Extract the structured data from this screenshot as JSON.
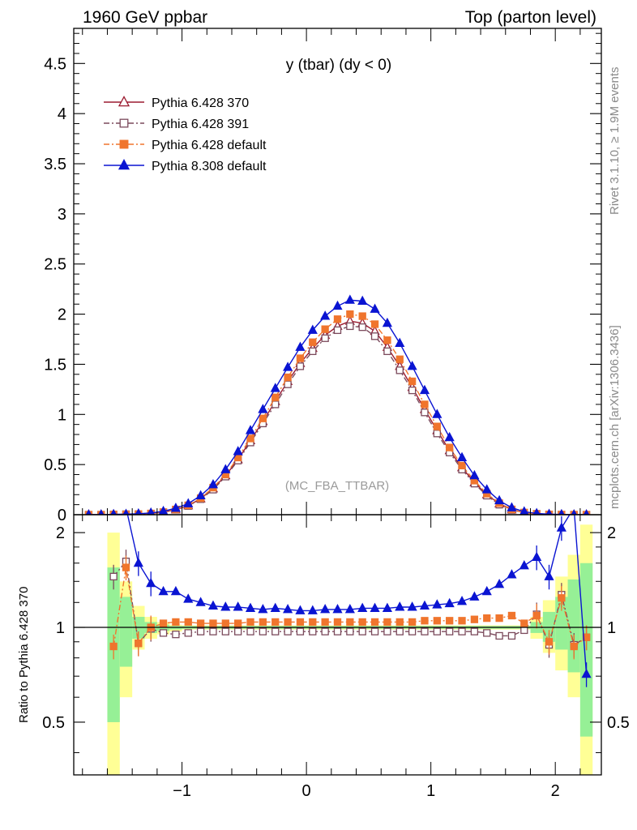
{
  "header": {
    "left": "1960 GeV ppbar",
    "right": "Top (parton level)"
  },
  "side_labels": {
    "rivet": "Rivet 3.1.10, ≥ 1.9M events",
    "mcplots": "mcplots.cern.ch [arXiv:1306.3436]"
  },
  "chart_data": [
    {
      "type": "line",
      "title": "y (tbar) (dy < 0)",
      "watermark": "(MC_FBA_TTBAR)",
      "ylim": [
        0,
        4.85
      ],
      "xlim": [
        -1.87,
        2.37
      ],
      "y_ticks": [
        "0",
        "0.5",
        "1",
        "1.5",
        "2",
        "2.5",
        "3",
        "3.5",
        "4",
        "4.5"
      ],
      "y_tick_values": [
        0,
        0.5,
        1,
        1.5,
        2,
        2.5,
        3,
        3.5,
        4,
        4.5
      ],
      "legend_position": "top-left",
      "x": [
        -1.75,
        -1.65,
        -1.55,
        -1.45,
        -1.35,
        -1.25,
        -1.15,
        -1.05,
        -0.95,
        -0.85,
        -0.75,
        -0.65,
        -0.55,
        -0.45,
        -0.35,
        -0.25,
        -0.15,
        -0.05,
        0.05,
        0.15,
        0.25,
        0.35,
        0.45,
        0.55,
        0.65,
        0.75,
        0.85,
        0.95,
        1.05,
        1.15,
        1.25,
        1.35,
        1.45,
        1.55,
        1.65,
        1.75,
        1.85,
        1.95,
        2.05,
        2.15,
        2.25
      ],
      "series": [
        {
          "name": "Pythia 6.428 370",
          "color": "#9b1b30",
          "marker": "open-triangle",
          "dash": "solid",
          "values": [
            0.0,
            0.0,
            0.002,
            0.003,
            0.006,
            0.012,
            0.025,
            0.05,
            0.09,
            0.16,
            0.26,
            0.39,
            0.55,
            0.74,
            0.93,
            1.13,
            1.33,
            1.51,
            1.66,
            1.79,
            1.88,
            1.93,
            1.91,
            1.83,
            1.67,
            1.48,
            1.27,
            1.05,
            0.84,
            0.64,
            0.47,
            0.32,
            0.2,
            0.11,
            0.05,
            0.02,
            0.008,
            0.003,
            0.001,
            0.0,
            0.0
          ]
        },
        {
          "name": "Pythia 6.428 391",
          "color": "#7b4a5c",
          "marker": "open-square",
          "dash": "dashdot",
          "values": [
            0.0,
            0.0,
            0.003,
            0.005,
            0.005,
            0.011,
            0.024,
            0.049,
            0.087,
            0.155,
            0.25,
            0.38,
            0.54,
            0.72,
            0.91,
            1.1,
            1.3,
            1.48,
            1.63,
            1.76,
            1.84,
            1.88,
            1.87,
            1.78,
            1.63,
            1.44,
            1.24,
            1.02,
            0.81,
            0.62,
            0.45,
            0.31,
            0.19,
            0.1,
            0.047,
            0.02,
            0.009,
            0.003,
            0.001,
            0.0,
            0.0
          ]
        },
        {
          "name": "Pythia 6.428 default",
          "color": "#f0752d",
          "marker": "filled-square",
          "dash": "dashdot",
          "values": [
            0.0,
            0.0,
            0.002,
            0.003,
            0.006,
            0.012,
            0.026,
            0.052,
            0.094,
            0.165,
            0.27,
            0.4,
            0.57,
            0.76,
            0.96,
            1.17,
            1.37,
            1.56,
            1.72,
            1.85,
            1.95,
            2.0,
            1.98,
            1.9,
            1.74,
            1.55,
            1.33,
            1.1,
            0.88,
            0.67,
            0.49,
            0.34,
            0.21,
            0.115,
            0.053,
            0.021,
            0.008,
            0.003,
            0.001,
            0.0,
            0.0
          ]
        },
        {
          "name": "Pythia 8.308 default",
          "color": "#0a14d2",
          "marker": "filled-triangle",
          "dash": "solid",
          "values": [
            0.0,
            0.0,
            0.003,
            0.005,
            0.01,
            0.018,
            0.034,
            0.065,
            0.11,
            0.19,
            0.3,
            0.45,
            0.63,
            0.84,
            1.05,
            1.26,
            1.47,
            1.67,
            1.84,
            1.98,
            2.08,
            2.14,
            2.13,
            2.05,
            1.91,
            1.71,
            1.48,
            1.24,
            1.0,
            0.77,
            0.57,
            0.39,
            0.25,
            0.14,
            0.07,
            0.03,
            0.013,
            0.005,
            0.002,
            0.0,
            0.0
          ]
        }
      ]
    },
    {
      "type": "line",
      "ylabel": "Ratio to Pythia 6.428 370",
      "ylim": [
        0.34,
        2.28
      ],
      "y_scale": "log",
      "y_ticks": [
        "0.5",
        "1",
        "2"
      ],
      "y_tick_values": [
        0.5,
        1,
        2
      ],
      "xlim": [
        -1.87,
        2.37
      ],
      "x_ticks": [
        "−1",
        "0",
        "1",
        "2"
      ],
      "x_tick_values": [
        -1,
        0,
        1,
        2
      ],
      "reference_line": 1,
      "x": [
        -1.55,
        -1.45,
        -1.35,
        -1.25,
        -1.15,
        -1.05,
        -0.95,
        -0.85,
        -0.75,
        -0.65,
        -0.55,
        -0.45,
        -0.35,
        -0.25,
        -0.15,
        -0.05,
        0.05,
        0.15,
        0.25,
        0.35,
        0.45,
        0.55,
        0.65,
        0.75,
        0.85,
        0.95,
        1.05,
        1.15,
        1.25,
        1.35,
        1.45,
        1.55,
        1.65,
        1.75,
        1.85,
        1.95,
        2.05,
        2.15,
        2.25
      ],
      "bands": {
        "x_edges": [
          -1.6,
          -1.5,
          -1.4,
          -1.3,
          -1.2,
          -1.1,
          -1.0,
          1.8,
          1.9,
          2.0,
          2.1,
          2.2,
          2.3
        ],
        "yellow_low": [
          0.3,
          0.6,
          0.85,
          0.92,
          0.95,
          0.97,
          0.985,
          0.92,
          0.83,
          0.73,
          0.6,
          0.32
        ],
        "yellow_high": [
          2.0,
          1.4,
          1.17,
          1.08,
          1.04,
          1.02,
          1.015,
          1.08,
          1.22,
          1.45,
          1.7,
          2.12
        ],
        "green_low": [
          0.5,
          0.75,
          0.92,
          0.96,
          0.975,
          0.985,
          0.99,
          0.96,
          0.9,
          0.85,
          0.72,
          0.45
        ],
        "green_high": [
          1.55,
          1.25,
          1.08,
          1.04,
          1.02,
          1.01,
          1.01,
          1.04,
          1.12,
          1.25,
          1.42,
          1.6
        ]
      },
      "series": [
        {
          "name": "Pythia 6.428 391",
          "color": "#7b4a5c",
          "values": [
            1.45,
            1.62,
            0.89,
            0.99,
            0.96,
            0.95,
            0.96,
            0.97,
            0.97,
            0.97,
            0.97,
            0.97,
            0.97,
            0.97,
            0.97,
            0.97,
            0.97,
            0.97,
            0.97,
            0.97,
            0.97,
            0.97,
            0.97,
            0.97,
            0.97,
            0.97,
            0.97,
            0.97,
            0.97,
            0.97,
            0.96,
            0.94,
            0.94,
            0.98,
            1.1,
            0.88,
            1.27,
            0.88,
            0.93
          ]
        },
        {
          "name": "Pythia 6.428 default",
          "color": "#f0752d",
          "values": [
            0.87,
            1.55,
            0.89,
            1.0,
            1.03,
            1.04,
            1.04,
            1.03,
            1.03,
            1.03,
            1.03,
            1.04,
            1.04,
            1.04,
            1.04,
            1.04,
            1.04,
            1.04,
            1.04,
            1.04,
            1.04,
            1.04,
            1.04,
            1.04,
            1.04,
            1.05,
            1.05,
            1.05,
            1.05,
            1.06,
            1.07,
            1.07,
            1.09,
            1.03,
            1.09,
            0.9,
            1.24,
            0.87,
            0.93
          ]
        },
        {
          "name": "Pythia 8.308 default",
          "color": "#0a14d2",
          "values": [
            2.4,
            2.4,
            1.6,
            1.38,
            1.3,
            1.3,
            1.23,
            1.2,
            1.17,
            1.16,
            1.16,
            1.15,
            1.14,
            1.15,
            1.14,
            1.13,
            1.13,
            1.14,
            1.14,
            1.14,
            1.15,
            1.15,
            1.15,
            1.16,
            1.16,
            1.17,
            1.18,
            1.19,
            1.21,
            1.25,
            1.3,
            1.37,
            1.47,
            1.57,
            1.67,
            1.45,
            2.07,
            2.4,
            0.71
          ]
        }
      ]
    }
  ]
}
